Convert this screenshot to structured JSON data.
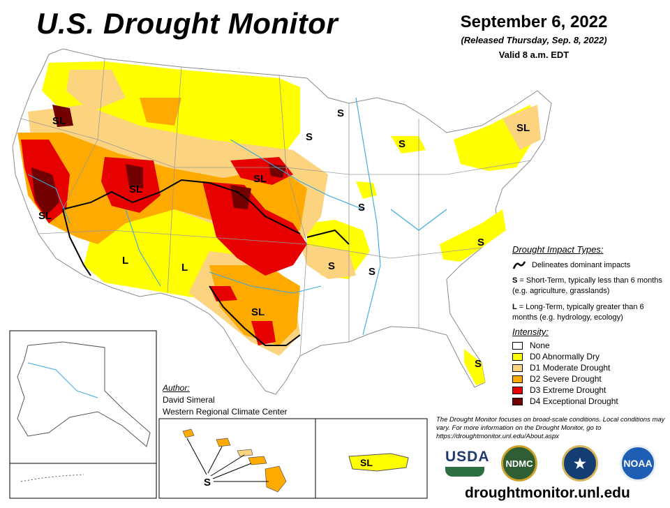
{
  "header": {
    "title": "U.S. Drought Monitor",
    "date": "September 6, 2022",
    "released": "(Released Thursday, Sep. 8, 2022)",
    "valid": "Valid 8 a.m. EDT"
  },
  "impact_types": {
    "heading": "Drought Impact Types:",
    "line_label": "Delineates dominant impacts",
    "short_term_code": "S",
    "short_term_text": "= Short-Term, typically less than 6 months (e.g. agriculture, grasslands)",
    "long_term_code": "L",
    "long_term_text": "= Long-Term, typically greater than 6 months (e.g. hydrology, ecology)"
  },
  "intensity": {
    "heading": "Intensity:",
    "categories": [
      {
        "label": "None",
        "color": "#ffffff"
      },
      {
        "label": "D0 Abnormally Dry",
        "color": "#ffff00"
      },
      {
        "label": "D1 Moderate Drought",
        "color": "#fcd37f"
      },
      {
        "label": "D2 Severe Drought",
        "color": "#ffaa00"
      },
      {
        "label": "D3 Extreme Drought",
        "color": "#e60000"
      },
      {
        "label": "D4 Exceptional Drought",
        "color": "#730000"
      }
    ]
  },
  "author": {
    "heading": "Author:",
    "name": "David Simeral",
    "org": "Western Regional Climate Center"
  },
  "map_labels": {
    "ca_north": "SL",
    "ca_south": "SL",
    "great_basin": "SL",
    "nebraska": "SL",
    "texas": "SL",
    "new_england": "SL",
    "puerto_rico": "SL",
    "arizona": "L",
    "new_mexico": "L",
    "minnesota": "S",
    "wisconsin": "S",
    "michigan": "S",
    "illinois": "S",
    "missouri": "S",
    "arkansas": "S",
    "carolinas": "S",
    "florida": "S",
    "hawaii": "S"
  },
  "footer": {
    "note": "The Drought Monitor focuses on broad-scale conditions. Local conditions may vary. For more information on the Drought Monitor, go to https://droughtmonitor.unl.edu/About.aspx",
    "url": "droughtmonitor.unl.edu",
    "logos": {
      "usda": "USDA",
      "ndmc": "NDMC",
      "noaa": "NOAA"
    }
  }
}
